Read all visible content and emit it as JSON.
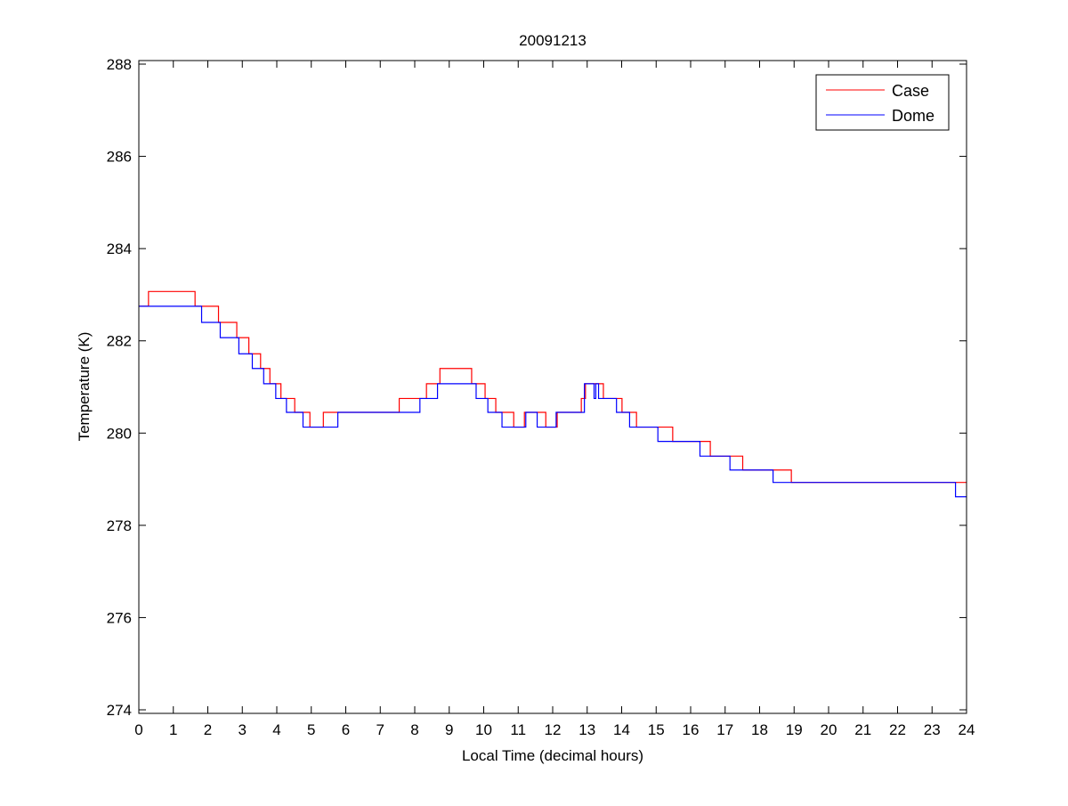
{
  "chart_data": {
    "type": "line",
    "title": "20091213",
    "xlabel": "Local Time (decimal hours)",
    "ylabel": "Temperature (K)",
    "xlim": [
      0,
      24
    ],
    "ylim": [
      274,
      288
    ],
    "xticks": [
      0,
      1,
      2,
      3,
      4,
      5,
      6,
      7,
      8,
      9,
      10,
      11,
      12,
      13,
      14,
      15,
      16,
      17,
      18,
      19,
      20,
      21,
      22,
      23,
      24
    ],
    "yticks": [
      274,
      276,
      278,
      280,
      282,
      284,
      286,
      288
    ],
    "grid": false,
    "legend_position": "top-right",
    "step": true,
    "series": [
      {
        "name": "Case",
        "color": "#ff0000",
        "points": [
          [
            0,
            282.75
          ],
          [
            0.28,
            283.07
          ],
          [
            1.63,
            282.75
          ],
          [
            2.31,
            282.4
          ],
          [
            2.84,
            282.07
          ],
          [
            3.19,
            281.72
          ],
          [
            3.53,
            281.4
          ],
          [
            3.8,
            281.07
          ],
          [
            4.12,
            280.75
          ],
          [
            4.52,
            280.45
          ],
          [
            4.96,
            280.13
          ],
          [
            5.35,
            280.45
          ],
          [
            7.55,
            280.75
          ],
          [
            8.34,
            281.07
          ],
          [
            8.73,
            281.4
          ],
          [
            9.65,
            281.07
          ],
          [
            10.04,
            280.75
          ],
          [
            10.35,
            280.45
          ],
          [
            10.87,
            280.13
          ],
          [
            11.18,
            280.45
          ],
          [
            11.8,
            280.13
          ],
          [
            12.13,
            280.45
          ],
          [
            12.83,
            280.75
          ],
          [
            12.95,
            281.07
          ],
          [
            13.47,
            280.75
          ],
          [
            14.01,
            280.45
          ],
          [
            14.43,
            280.13
          ],
          [
            15.48,
            279.82
          ],
          [
            16.57,
            279.5
          ],
          [
            17.51,
            279.2
          ],
          [
            18.92,
            278.93
          ],
          [
            24,
            278.93
          ]
        ]
      },
      {
        "name": "Dome",
        "color": "#0000ff",
        "points": [
          [
            0,
            282.75
          ],
          [
            1.82,
            282.4
          ],
          [
            2.36,
            282.07
          ],
          [
            2.9,
            281.72
          ],
          [
            3.29,
            281.4
          ],
          [
            3.62,
            281.07
          ],
          [
            3.97,
            280.75
          ],
          [
            4.28,
            280.45
          ],
          [
            4.76,
            280.13
          ],
          [
            5.77,
            280.45
          ],
          [
            8.15,
            280.75
          ],
          [
            8.66,
            281.07
          ],
          [
            9.78,
            280.75
          ],
          [
            10.12,
            280.45
          ],
          [
            10.53,
            280.13
          ],
          [
            11.22,
            280.45
          ],
          [
            11.55,
            280.13
          ],
          [
            12.1,
            280.45
          ],
          [
            12.92,
            281.07
          ],
          [
            13.2,
            280.75
          ],
          [
            13.25,
            281.07
          ],
          [
            13.33,
            280.75
          ],
          [
            13.85,
            280.45
          ],
          [
            14.23,
            280.13
          ],
          [
            15.05,
            279.82
          ],
          [
            16.27,
            279.5
          ],
          [
            17.14,
            279.2
          ],
          [
            18.39,
            278.93
          ],
          [
            23.68,
            278.62
          ],
          [
            24,
            278.62
          ]
        ]
      }
    ]
  }
}
